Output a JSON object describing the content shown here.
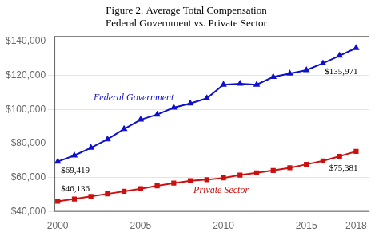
{
  "chart_data": {
    "type": "line",
    "title": [
      "Figure 2. Average Total Compensation",
      "Federal Government vs. Private Sector"
    ],
    "x": [
      2000,
      2001,
      2002,
      2003,
      2004,
      2005,
      2006,
      2007,
      2008,
      2009,
      2010,
      2011,
      2012,
      2013,
      2014,
      2015,
      2016,
      2017,
      2018
    ],
    "series": [
      {
        "name": "Federal Government",
        "color": "#1010cc",
        "marker": "triangle",
        "line_style": "solid",
        "values": [
          69419,
          73000,
          77500,
          82500,
          88500,
          94000,
          97000,
          101000,
          103500,
          106500,
          114500,
          115000,
          114500,
          119000,
          121000,
          123000,
          127000,
          131500,
          135971
        ]
      },
      {
        "name": "Private Sector",
        "color": "#cc1010",
        "marker": "square",
        "line_style": "solid",
        "values": [
          46136,
          47500,
          49000,
          50500,
          52000,
          53500,
          55200,
          56800,
          58200,
          58800,
          59800,
          61500,
          62800,
          64200,
          65800,
          67800,
          69800,
          72500,
          75381
        ]
      }
    ],
    "annotations": [
      {
        "text": "$69,419",
        "x": 2000,
        "y": 69419
      },
      {
        "text": "$135,971",
        "x": 2018,
        "y": 135971
      },
      {
        "text": "$46,136",
        "x": 2000,
        "y": 46136
      },
      {
        "text": "$75,381",
        "x": 2018,
        "y": 75381
      }
    ],
    "xlim": [
      1999.8,
      2018.8
    ],
    "xticks": [
      2000,
      2005,
      2010,
      2015,
      2018
    ],
    "ylim": [
      40000,
      143000
    ],
    "yticks": [
      {
        "value": 40000,
        "label": "$40,000"
      },
      {
        "value": 60000,
        "label": "$60,000"
      },
      {
        "value": 80000,
        "label": "$80,000"
      },
      {
        "value": 100000,
        "label": "$100,000"
      },
      {
        "value": 120000,
        "label": "$120,000"
      },
      {
        "value": 140000,
        "label": "$140,000"
      }
    ],
    "grid": "y"
  }
}
